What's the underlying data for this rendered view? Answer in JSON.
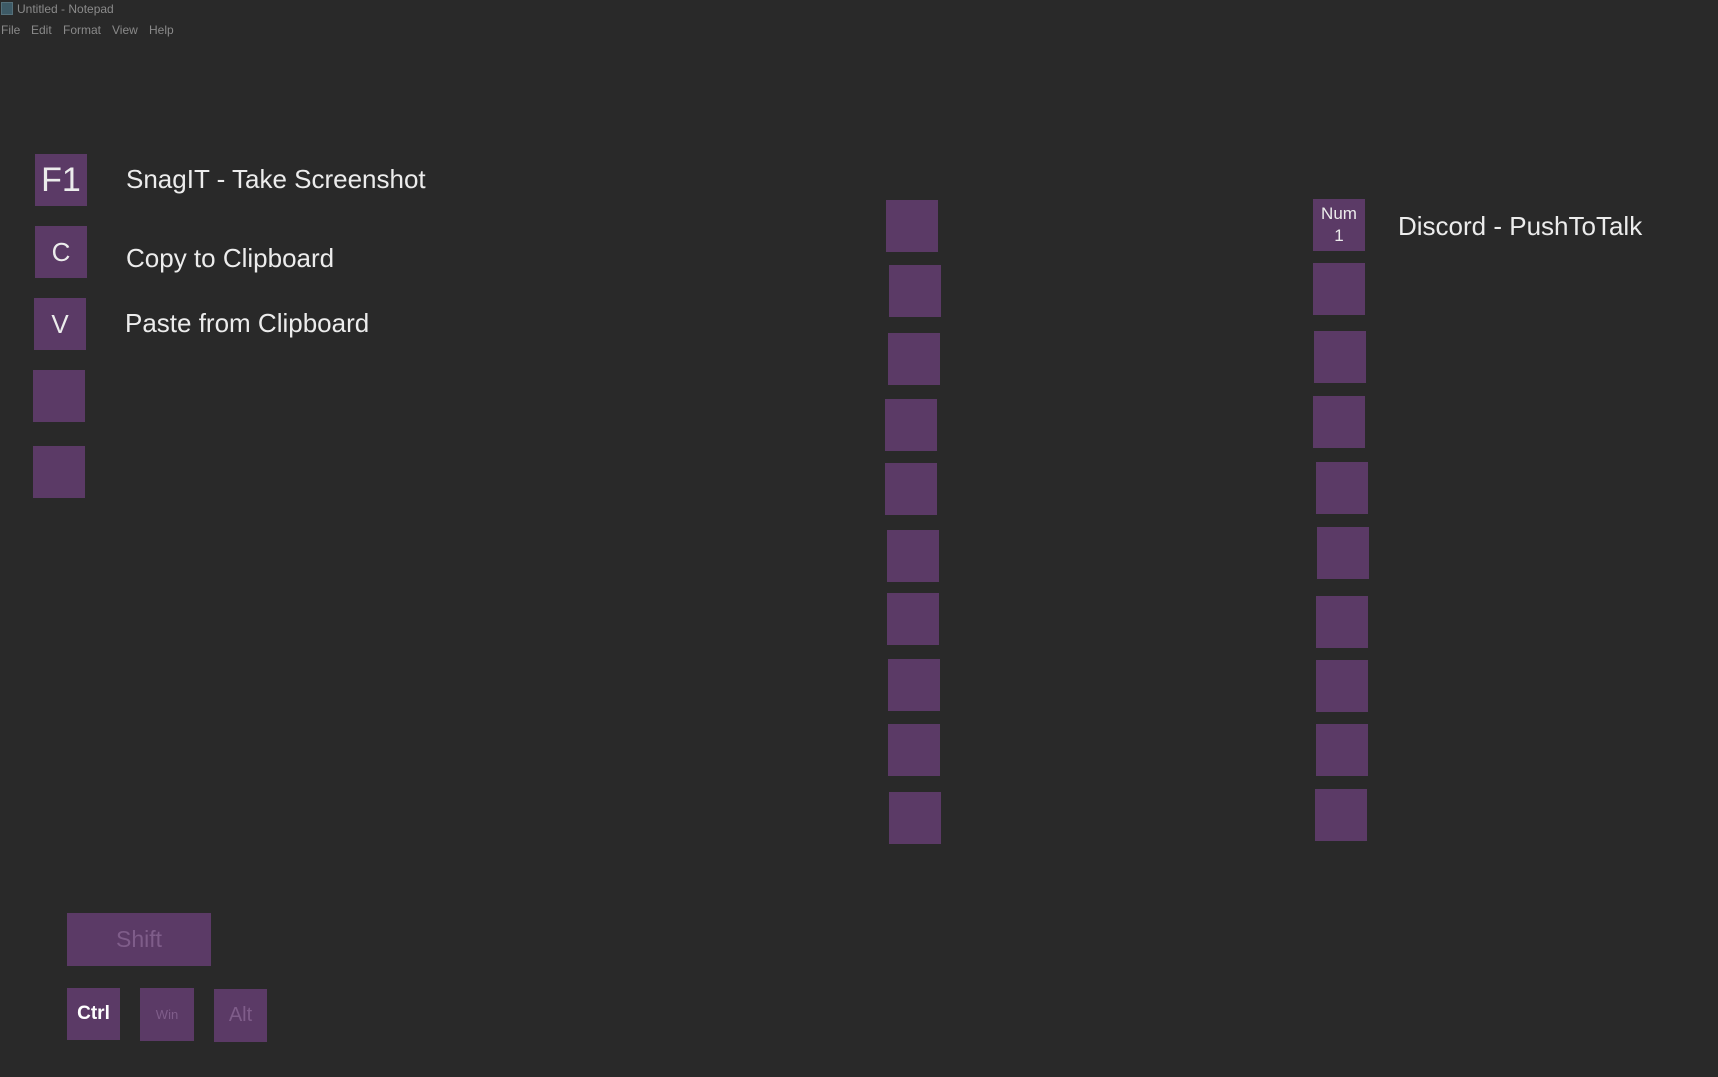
{
  "window": {
    "title": "Untitled - Notepad"
  },
  "menu": [
    "File",
    "Edit",
    "Format",
    "View",
    "Help"
  ],
  "left_bindings": [
    {
      "key": "F1",
      "label": "SnagIT - Take Screenshot"
    },
    {
      "key": "C",
      "label": "Copy to Clipboard"
    },
    {
      "key": "V",
      "label": "Paste from Clipboard"
    },
    {
      "key": "",
      "label": ""
    },
    {
      "key": "",
      "label": ""
    }
  ],
  "right_bindings": [
    {
      "key": "Num\n1",
      "label": "Discord - PushToTalk"
    }
  ],
  "modifiers": {
    "shift": "Shift",
    "ctrl": "Ctrl",
    "win": "Win",
    "alt": "Alt"
  },
  "colors": {
    "background": "#292929",
    "key": "#5b3a66",
    "text": "#ececec",
    "muted_key_text": "#7f5d8a"
  }
}
